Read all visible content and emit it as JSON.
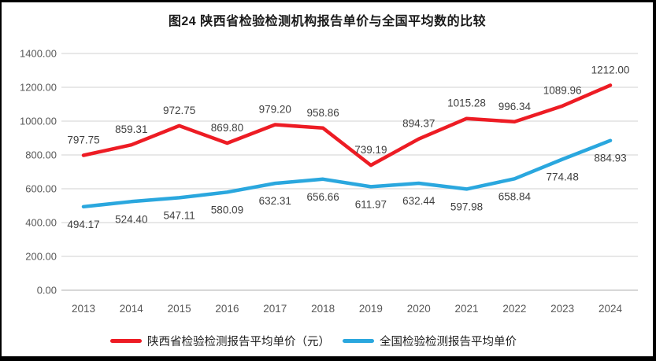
{
  "chart_data": {
    "type": "line",
    "title": "图24 陕西省检验检测机构报告单价与全国平均数的比较",
    "categories": [
      "2013",
      "2014",
      "2015",
      "2016",
      "2017",
      "2018",
      "2019",
      "2020",
      "2021",
      "2022",
      "2023",
      "2024"
    ],
    "series": [
      {
        "name": "陕西省检验检测报告平均单价（元）",
        "color": "#ed1c24",
        "label_position": "above",
        "values": [
          797.75,
          859.31,
          972.75,
          869.8,
          979.2,
          958.86,
          739.19,
          894.37,
          1015.28,
          996.34,
          1089.96,
          1212.0
        ]
      },
      {
        "name": "全国检验检测报告平均单价",
        "color": "#2aa7de",
        "label_position": "below",
        "values": [
          494.17,
          524.4,
          547.11,
          580.09,
          632.31,
          656.66,
          611.97,
          632.44,
          597.98,
          658.84,
          774.48,
          884.93
        ]
      }
    ],
    "y_axis": {
      "min": 0,
      "max": 1400,
      "step": 200,
      "tick_labels": [
        "0.00",
        "200.00",
        "400.00",
        "600.00",
        "800.00",
        "1000.00",
        "1200.00",
        "1400.00"
      ]
    },
    "grid": true,
    "legend_position": "bottom",
    "data_labels": true
  },
  "colors": {
    "background": "#ffffff",
    "border": "#000000",
    "gridline": "#d9d9d9",
    "zero_line": "#bfbfbf",
    "axis_text": "#595959",
    "data_label_text": "#3f3f3f",
    "title_text": "#1a1a1a"
  }
}
